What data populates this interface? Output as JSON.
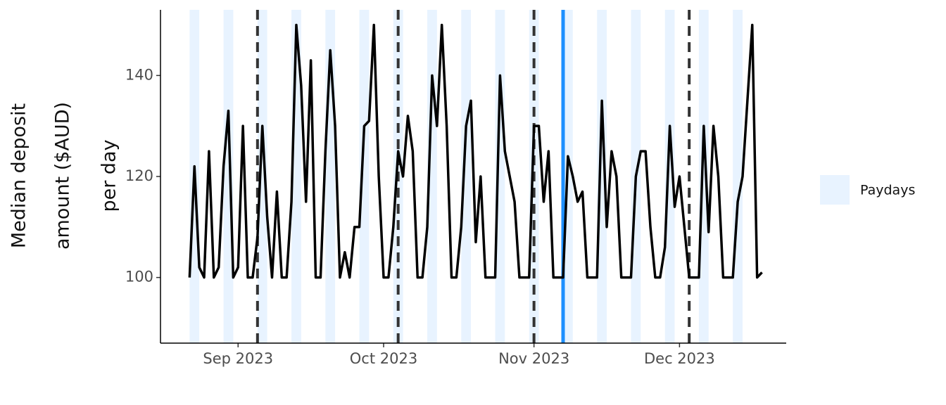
{
  "chart_data": {
    "type": "line",
    "y_label": [
      "Median deposit",
      "amount ($AUD)",
      "per day"
    ],
    "categories": [
      null,
      null,
      null,
      null,
      null,
      null,
      null,
      null,
      null,
      null,
      null,
      null,
      null,
      null,
      null,
      null,
      "Sep 2023",
      null,
      null,
      null,
      null,
      null,
      null,
      null,
      null,
      null,
      null,
      null,
      null,
      null,
      null,
      null,
      null,
      null,
      null,
      null,
      null,
      null,
      null,
      null,
      null,
      null,
      null,
      null,
      null,
      null,
      "Oct 2023",
      null,
      null,
      null,
      null,
      null,
      null,
      null,
      null,
      null,
      null,
      null,
      null,
      null,
      null,
      null,
      null,
      null,
      null,
      null,
      null,
      null,
      null,
      null,
      null,
      null,
      null,
      null,
      null,
      null,
      null,
      "Nov 2023",
      null,
      null,
      null,
      null,
      null,
      null,
      null,
      null,
      null,
      null,
      null,
      null,
      null,
      null,
      null,
      null,
      null,
      null,
      null,
      null,
      null,
      null,
      null,
      null,
      null,
      null,
      null,
      null,
      null,
      "Dec 2023",
      null,
      null,
      null,
      null,
      null,
      null,
      null,
      null,
      null,
      null,
      null,
      null,
      null,
      null,
      null,
      null,
      null,
      null,
      null,
      null,
      null,
      null
    ],
    "series": [
      {
        "color": "#000000",
        "values": [
          null,
          null,
          null,
          null,
          null,
          null,
          100,
          122,
          102,
          100,
          125,
          100,
          102,
          122,
          133,
          100,
          102,
          130,
          100,
          100,
          108,
          130,
          112,
          100,
          117,
          100,
          100,
          115,
          150,
          138,
          115,
          143,
          100,
          100,
          125,
          145,
          130,
          100,
          105,
          100,
          110,
          110,
          130,
          131,
          150,
          120,
          100,
          100,
          110,
          125,
          120,
          132,
          125,
          100,
          100,
          110,
          140,
          130,
          150,
          130,
          100,
          100,
          110,
          130,
          135,
          107,
          120,
          100,
          100,
          100,
          140,
          125,
          120,
          115,
          100,
          100,
          100,
          130,
          130,
          115,
          125,
          100,
          100,
          100,
          124,
          120,
          115,
          117,
          100,
          100,
          100,
          135,
          110,
          125,
          120,
          100,
          100,
          100,
          120,
          125,
          125,
          110,
          100,
          100,
          106,
          130,
          114,
          120,
          110,
          100,
          100,
          100,
          130,
          109,
          130,
          120,
          100,
          100,
          100,
          115,
          120,
          135,
          150,
          100,
          101,
          null,
          null,
          null,
          null,
          null
        ]
      }
    ],
    "paydays": {
      "name": "Paydays",
      "color": "#e8f3ff",
      "days": [
        7,
        14,
        21,
        28,
        35,
        42,
        49,
        56,
        63,
        70,
        77,
        84,
        91,
        98,
        105,
        112,
        119
      ]
    },
    "dashed_lines": [
      20,
      49,
      77,
      109
    ],
    "highlight_line": {
      "day": 83,
      "color": "#1e90ff"
    },
    "ylim": [
      87,
      153
    ],
    "yticks": [
      100,
      120,
      140
    ]
  }
}
